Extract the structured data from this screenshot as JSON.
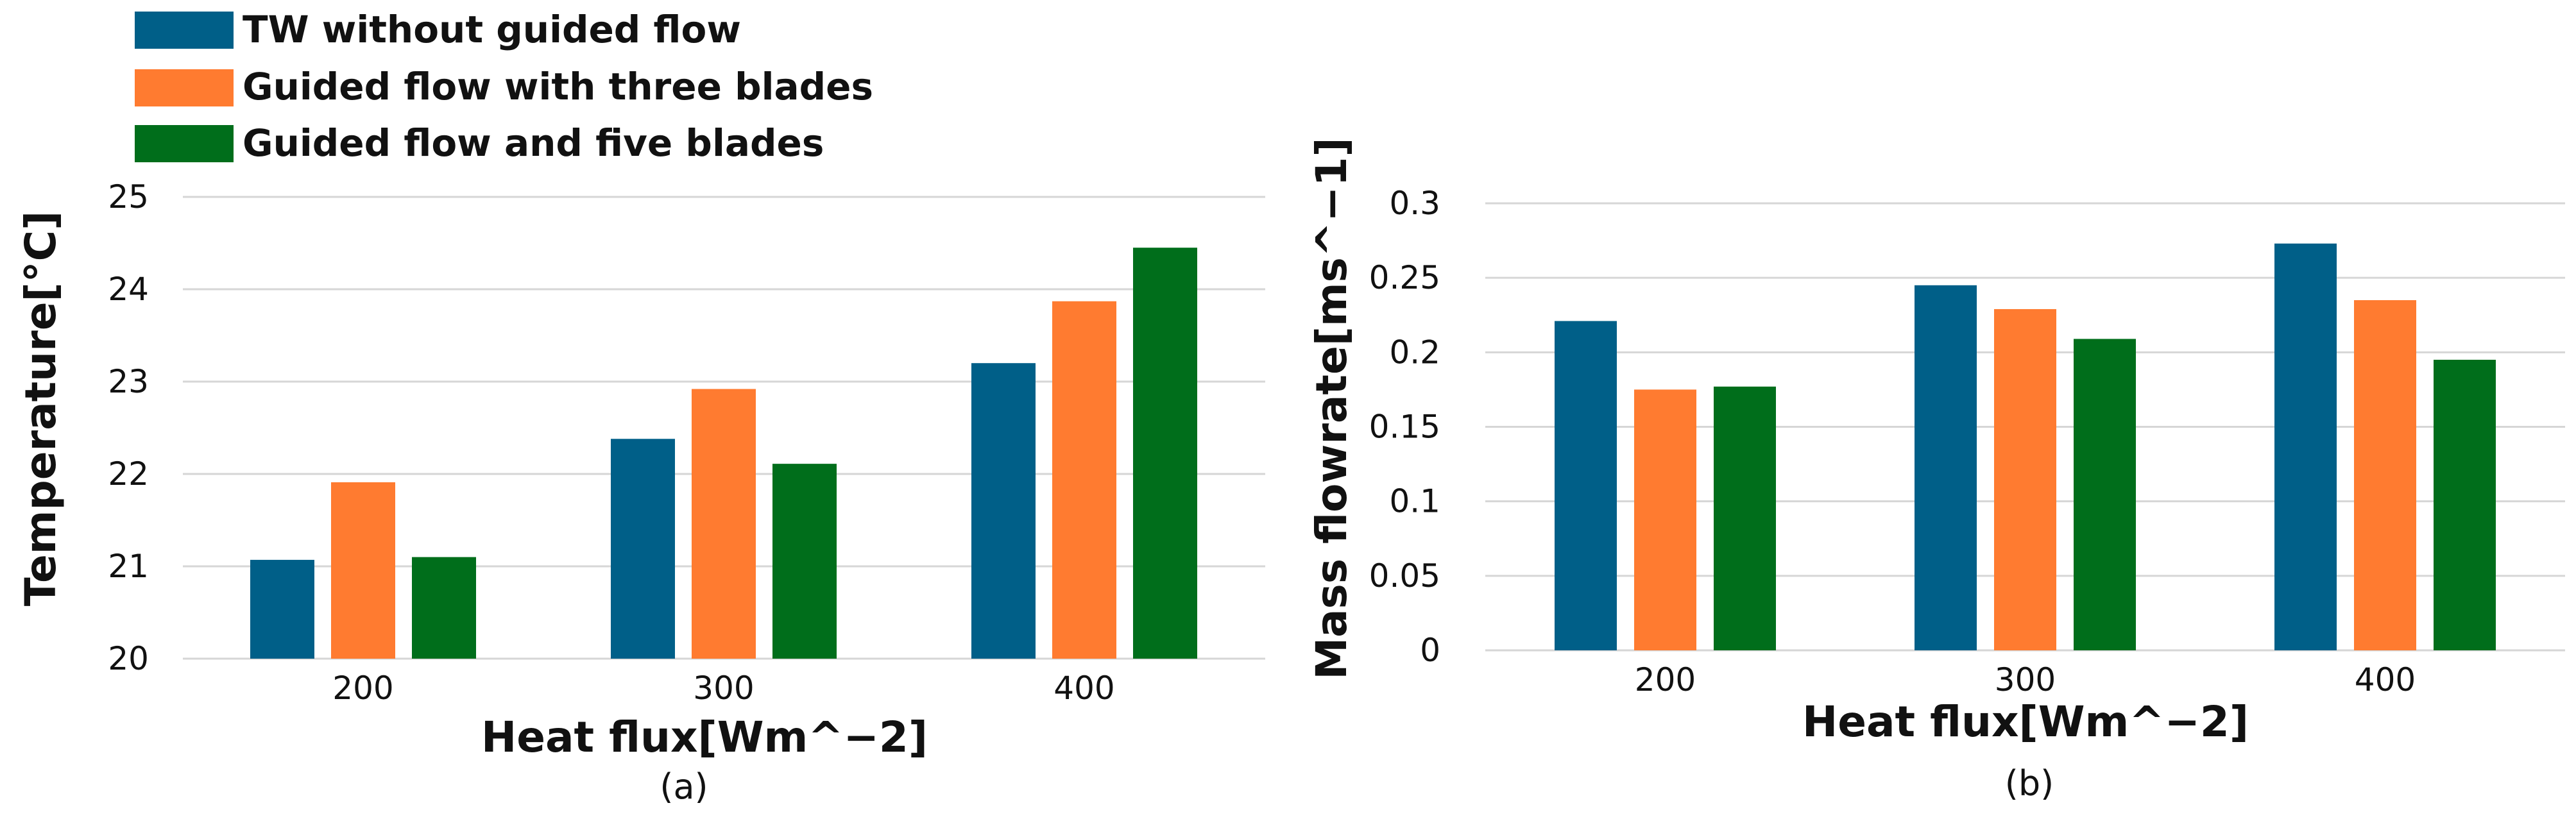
{
  "colors": {
    "series1": "#005f88",
    "series2": "#ff7b30",
    "series3": "#006e1b"
  },
  "legend": [
    "TW without guided flow",
    "Guided flow with three blades",
    "Guided flow and five blades"
  ],
  "chart_data": [
    {
      "type": "bar",
      "caption": "(a)",
      "categories": [
        "200",
        "300",
        "400"
      ],
      "series": [
        {
          "name": "TW without guided flow",
          "values": [
            21.07,
            22.38,
            23.2
          ]
        },
        {
          "name": "Guided flow with three blades",
          "values": [
            21.91,
            22.92,
            23.87
          ]
        },
        {
          "name": "Guided flow and five blades",
          "values": [
            21.1,
            22.11,
            24.45
          ]
        }
      ],
      "xlabel": "Heat flux[Wm^−2]",
      "ylabel": "Temperature[°C]",
      "ylim": [
        20,
        25
      ],
      "yticks": [
        "20",
        "21",
        "22",
        "23",
        "24",
        "25"
      ],
      "ytick_values": [
        20,
        21,
        22,
        23,
        24,
        25
      ],
      "grid": true,
      "legend_position": "top-left"
    },
    {
      "type": "bar",
      "caption": "(b)",
      "categories": [
        "200",
        "300",
        "400"
      ],
      "series": [
        {
          "name": "TW without guided flow",
          "values": [
            0.221,
            0.245,
            0.273
          ]
        },
        {
          "name": "Guided flow with three blades",
          "values": [
            0.175,
            0.229,
            0.235
          ]
        },
        {
          "name": "Guided flow and five blades",
          "values": [
            0.177,
            0.209,
            0.195
          ]
        }
      ],
      "xlabel": "Heat flux[Wm^−2]",
      "ylabel": "Mass flowrate[ms^−1]",
      "ylim": [
        0,
        0.3
      ],
      "yticks": [
        "0",
        "0.05",
        "0.1",
        "0.15",
        "0.2",
        "0.25",
        "0.3"
      ],
      "ytick_values": [
        0,
        0.05,
        0.1,
        0.15,
        0.2,
        0.25,
        0.3
      ],
      "grid": true
    }
  ]
}
